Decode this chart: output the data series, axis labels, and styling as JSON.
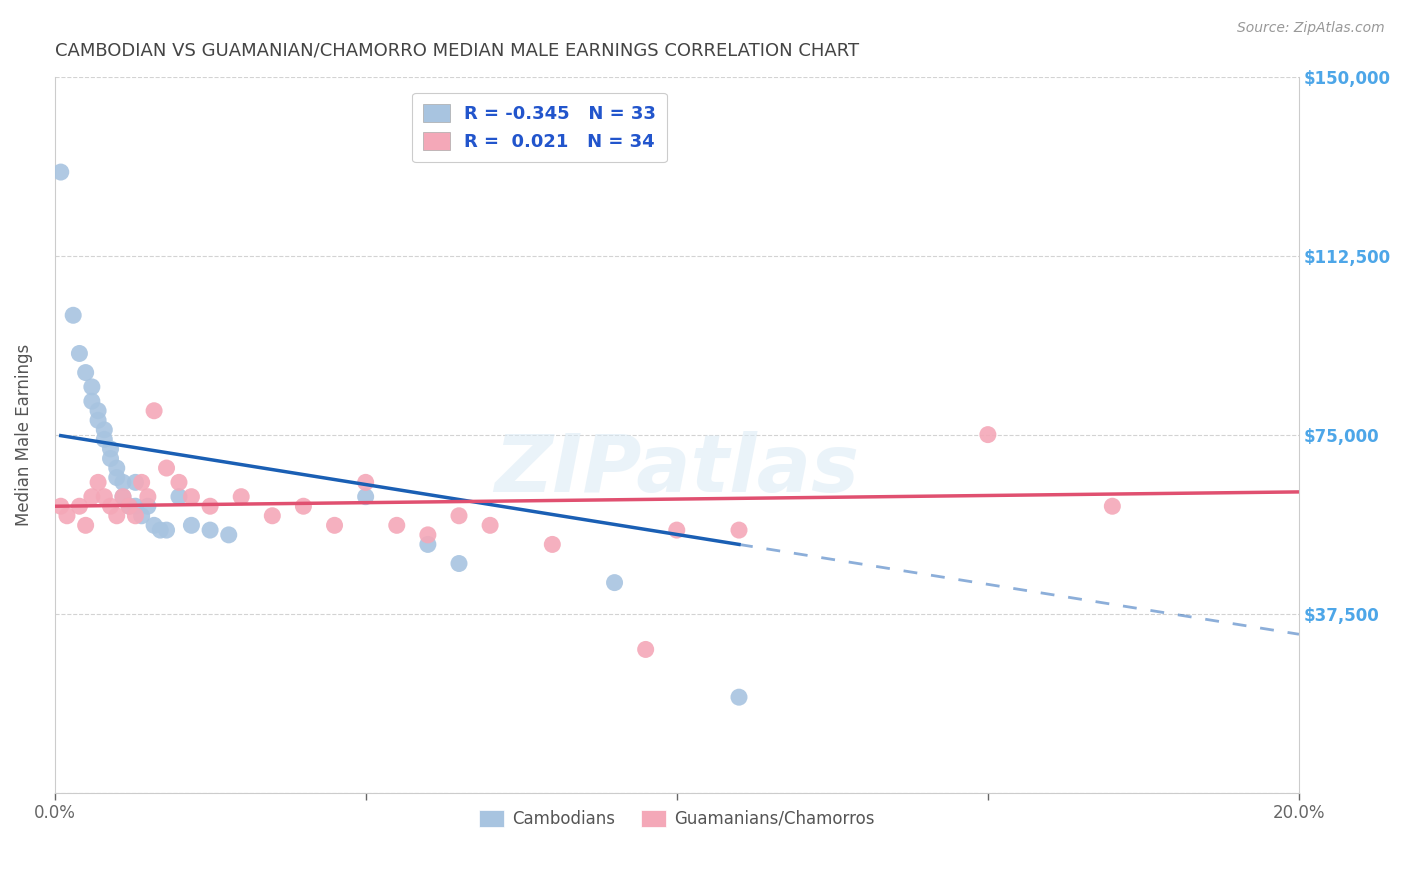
{
  "title": "CAMBODIAN VS GUAMANIAN/CHAMORRO MEDIAN MALE EARNINGS CORRELATION CHART",
  "source": "Source: ZipAtlas.com",
  "ylabel": "Median Male Earnings",
  "xlim": [
    0.0,
    0.2
  ],
  "ylim": [
    0,
    150000
  ],
  "yticks": [
    0,
    37500,
    75000,
    112500,
    150000
  ],
  "ytick_labels": [
    "",
    "$37,500",
    "$75,000",
    "$112,500",
    "$150,000"
  ],
  "xticks": [
    0.0,
    0.05,
    0.1,
    0.15,
    0.2
  ],
  "xtick_labels": [
    "0.0%",
    "",
    "",
    "",
    "20.0%"
  ],
  "cambodian_color": "#a8c4e0",
  "guamanian_color": "#f4a8b8",
  "cambodian_line_color": "#1a5fb4",
  "guamanian_line_color": "#e05070",
  "r_cambodian": -0.345,
  "n_cambodian": 33,
  "r_guamanian": 0.021,
  "n_guamanian": 34,
  "background_color": "#ffffff",
  "grid_color": "#c8c8c8",
  "title_color": "#444444",
  "axis_label_color": "#555555",
  "right_tick_color": "#4da6e8",
  "legend_text_color": "#2255cc",
  "cambodian_x": [
    0.001,
    0.003,
    0.004,
    0.005,
    0.006,
    0.006,
    0.007,
    0.007,
    0.008,
    0.008,
    0.009,
    0.009,
    0.01,
    0.01,
    0.011,
    0.011,
    0.012,
    0.013,
    0.013,
    0.014,
    0.015,
    0.016,
    0.017,
    0.018,
    0.02,
    0.022,
    0.025,
    0.028,
    0.05,
    0.06,
    0.065,
    0.09,
    0.11
  ],
  "cambodian_y": [
    130000,
    100000,
    92000,
    88000,
    85000,
    82000,
    80000,
    78000,
    76000,
    74000,
    72000,
    70000,
    68000,
    66000,
    65000,
    62000,
    60000,
    65000,
    60000,
    58000,
    60000,
    56000,
    55000,
    55000,
    62000,
    56000,
    55000,
    54000,
    62000,
    52000,
    48000,
    44000,
    20000
  ],
  "guamanian_x": [
    0.001,
    0.002,
    0.004,
    0.005,
    0.006,
    0.007,
    0.008,
    0.009,
    0.01,
    0.011,
    0.012,
    0.013,
    0.014,
    0.015,
    0.016,
    0.018,
    0.02,
    0.022,
    0.025,
    0.03,
    0.035,
    0.04,
    0.045,
    0.05,
    0.055,
    0.06,
    0.065,
    0.07,
    0.08,
    0.095,
    0.1,
    0.11,
    0.15,
    0.17
  ],
  "guamanian_y": [
    60000,
    58000,
    60000,
    56000,
    62000,
    65000,
    62000,
    60000,
    58000,
    62000,
    60000,
    58000,
    65000,
    62000,
    80000,
    68000,
    65000,
    62000,
    60000,
    62000,
    58000,
    60000,
    56000,
    65000,
    56000,
    54000,
    58000,
    56000,
    52000,
    30000,
    55000,
    55000,
    75000,
    60000
  ]
}
